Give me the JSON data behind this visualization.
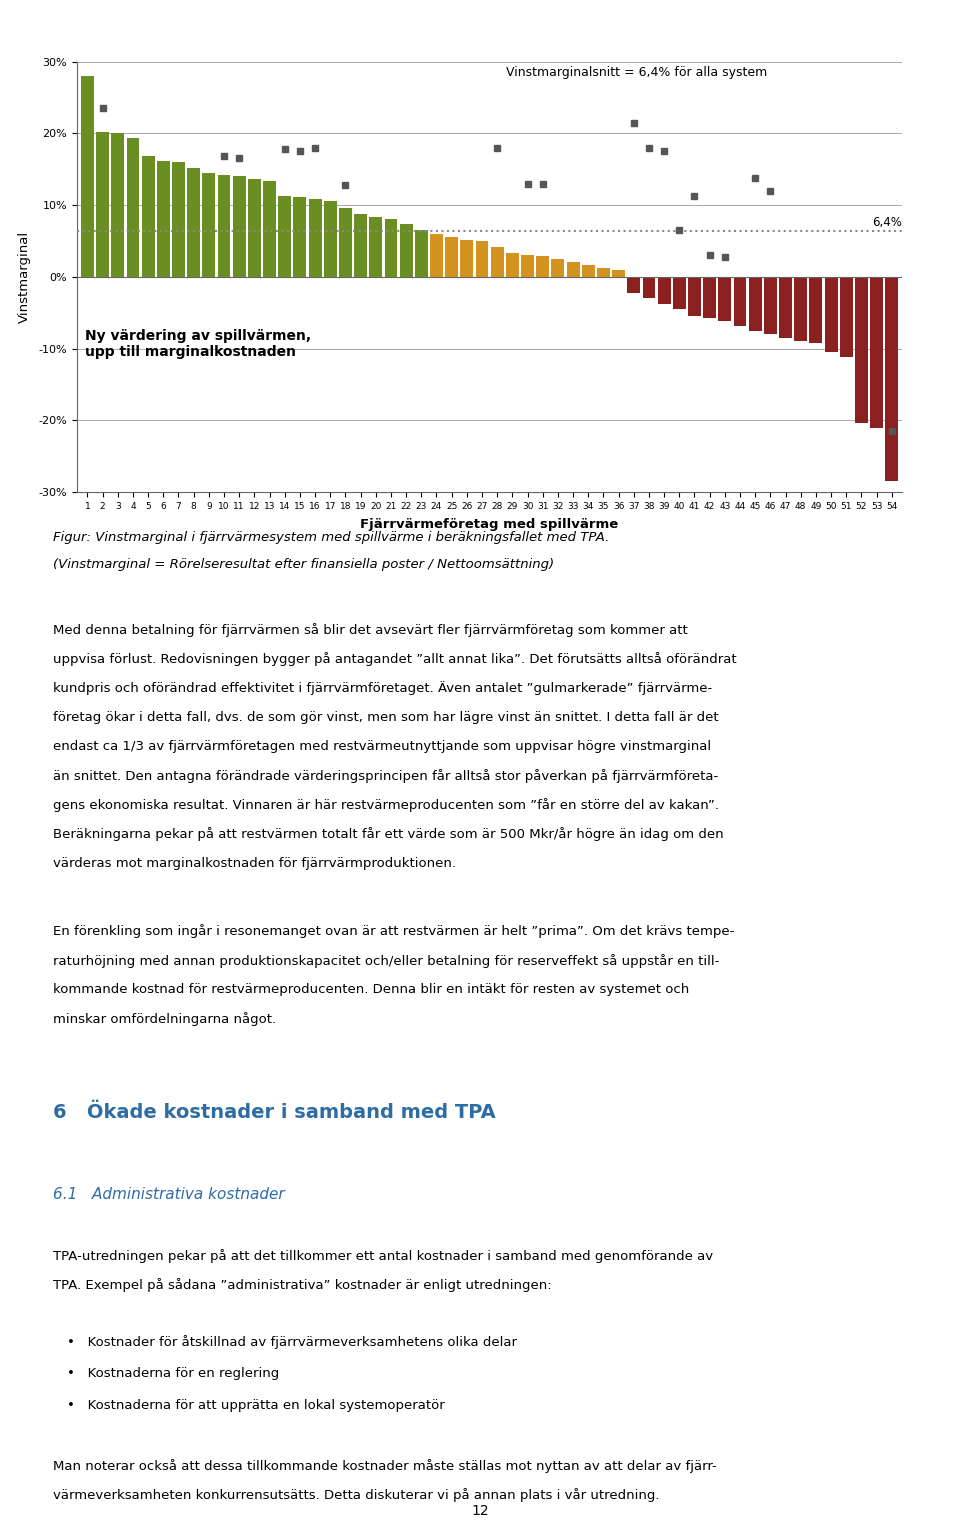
{
  "bar_values": [
    28.0,
    20.2,
    20.0,
    19.3,
    16.8,
    16.2,
    16.0,
    15.1,
    14.5,
    14.2,
    14.0,
    13.6,
    13.3,
    11.3,
    11.1,
    10.9,
    10.5,
    9.6,
    8.8,
    8.4,
    8.1,
    7.3,
    6.5,
    6.0,
    5.5,
    5.2,
    5.0,
    4.1,
    3.3,
    3.1,
    2.9,
    2.5,
    2.0,
    1.7,
    1.3,
    0.9,
    -2.2,
    -3.0,
    -3.8,
    -4.5,
    -5.5,
    -5.8,
    -6.2,
    -6.8,
    -7.5,
    -8.0,
    -8.5,
    -8.9,
    -9.2,
    -10.5,
    -11.2,
    -20.3,
    -21.0,
    -28.5
  ],
  "marker_values": [
    null,
    23.5,
    null,
    null,
    null,
    null,
    null,
    null,
    null,
    16.8,
    16.5,
    null,
    null,
    17.8,
    17.5,
    18.0,
    null,
    12.8,
    null,
    null,
    null,
    null,
    null,
    null,
    null,
    null,
    null,
    18.0,
    null,
    13.0,
    13.0,
    null,
    null,
    null,
    null,
    null,
    21.5,
    18.0,
    17.5,
    6.5,
    11.2,
    3.0,
    2.7,
    null,
    13.8,
    12.0,
    null,
    null,
    null,
    null,
    null,
    null,
    null,
    -21.5
  ],
  "avg_line": 6.4,
  "xlabel": "Fjärrvärmeföretag med spillvärme",
  "ylabel": "Vinstmarginal",
  "ylim": [
    -30,
    30
  ],
  "yticks": [
    -30,
    -20,
    -10,
    0,
    10,
    20,
    30
  ],
  "annotation_text": "Vinstmarginalsnitt = 6,4% för alla system",
  "avg_label": "6,4%",
  "box_text": "Ny värdering av spillvärmen,\nupp till marginalkostnaden",
  "green_color": "#6b8e23",
  "orange_color": "#d4921e",
  "red_color": "#8b2020",
  "marker_color": "#555555",
  "avg_line_color": "#888888",
  "background_color": "#ffffff",
  "figure_caption": "Figur: Vinstmarginal i fjärrvärmesystem med spillvärme i beräkningsfallet med TPA.\n(Vinstmarginal = Rörelseresultat efter finansiella poster / Nettoomssättning)",
  "para1": "Med denna betalning för fjärrvärmen så blir det avsevärt fler fjärrvärmeföretag som kommer att uppvisa förlust. Redovisningen bygger på antagandet ”allt annat lika”. Det förutsätts alltså oförändrat kundpris och oförändrad effektivitet i fjärrvärmeföretaget. Även antalet ”gulmarkerade” fjärrvärme­ företag ökar i detta fall, dvs. de som gör vinst, men som har lägre vinst än snittet. I detta fall är det endast ca 1/3 av fjärrvärmeföretagen med restvärmeutnyttjande som uppvisar högre vinstmarginal än snittet. Den antagna förändrade värderingsprincipen får alltså stor påverkan på fjärrvärmeföreta­gens ekonomiska resultat. Vinnaren är här restvärmeproducenten som ”får en större del av kakan”. Beräkningarna pekar på att restvärmen totalt får ett värde som är 500 Mkr/år högre än idag om den värderas mot marginalkostnaden för fjärrvärmeproduktionen.",
  "para2": "En förenkling som ingår i resonemanget ovan är att restvärmen är helt ”prima”. Om det krävs tempe­ raturhöjning med annan produktionskapacitet och/eller betalning för reserveffekt så uppstår en till­ kommande kostnad för restvärmeproducenten. Denna blir en intäkt för resten av systemet och minskar omfördelningarna något.",
  "section_title": "6   Ökade kostnader i samband med TPA",
  "section_sub": "6.1   Administrativa kostnader",
  "para3": "TPA-utredningen pekar på att det tillkommer ett antal kostnader i samband med genomförande av TPA. Exempel på sådana ”administrativa” kostnader är enligt utredningen:",
  "bullet1": "Kostnader för åtskillnad av fjärrvärmeverksamhetens olika delar",
  "bullet2": "Kostnaderna för en reglering",
  "bullet3": "Kostnaderna för att upprätta en lokal systemoperatör",
  "para4": "Man noterar också att dessa tillkommande kostnader måste ställas mot nyttan av att delar av fjärr­ värmeverksamheten konkurrensutsätts. Detta diskuterar vi på annan plats i vår utredning.",
  "page_num": "12"
}
